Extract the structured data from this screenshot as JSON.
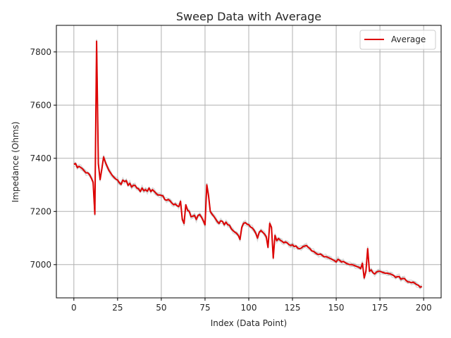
{
  "chart_data": {
    "type": "line",
    "title": "Sweep Data with Average",
    "xlabel": "Index (Data Point)",
    "ylabel": "Impedance (Ohms)",
    "xlim": [
      -10,
      210
    ],
    "ylim": [
      6875,
      7900
    ],
    "xticks": [
      0,
      25,
      50,
      75,
      100,
      125,
      150,
      175,
      200
    ],
    "yticks": [
      7000,
      7200,
      7400,
      7600,
      7800
    ],
    "grid": true,
    "legend": {
      "placement": "top-right",
      "entries": [
        "Average"
      ]
    },
    "colors": {
      "average": "#dd0000",
      "sweeps": "#999999",
      "grid": "#b0b0b0"
    },
    "series": [
      {
        "name": "Average",
        "x": [
          0,
          1,
          2,
          3,
          4,
          5,
          6,
          7,
          8,
          9,
          10,
          11,
          12,
          13,
          14,
          15,
          16,
          17,
          18,
          19,
          20,
          21,
          22,
          23,
          24,
          25,
          26,
          27,
          28,
          29,
          30,
          31,
          32,
          33,
          34,
          35,
          36,
          37,
          38,
          39,
          40,
          41,
          42,
          43,
          44,
          45,
          46,
          47,
          48,
          49,
          50,
          51,
          52,
          53,
          54,
          55,
          56,
          57,
          58,
          59,
          60,
          61,
          62,
          63,
          64,
          65,
          66,
          67,
          68,
          69,
          70,
          71,
          72,
          73,
          74,
          75,
          76,
          77,
          78,
          79,
          80,
          81,
          82,
          83,
          84,
          85,
          86,
          87,
          88,
          89,
          90,
          91,
          92,
          93,
          94,
          95,
          96,
          97,
          98,
          99,
          100,
          101,
          102,
          103,
          104,
          105,
          106,
          107,
          108,
          109,
          110,
          111,
          112,
          113,
          114,
          115,
          116,
          117,
          118,
          119,
          120,
          121,
          122,
          123,
          124,
          125,
          126,
          127,
          128,
          129,
          130,
          131,
          132,
          133,
          134,
          135,
          136,
          137,
          138,
          139,
          140,
          141,
          142,
          143,
          144,
          145,
          146,
          147,
          148,
          149,
          150,
          151,
          152,
          153,
          154,
          155,
          156,
          157,
          158,
          159,
          160,
          161,
          162,
          163,
          164,
          165,
          166,
          167,
          168,
          169,
          170,
          171,
          172,
          173,
          174,
          175,
          176,
          177,
          178,
          179,
          180,
          181,
          182,
          183,
          184,
          185,
          186,
          187,
          188,
          189,
          190,
          191,
          192,
          193,
          194,
          195,
          196,
          197,
          198,
          199
        ],
        "values": [
          7378,
          7380,
          7365,
          7370,
          7365,
          7360,
          7352,
          7345,
          7345,
          7338,
          7325,
          7310,
          7190,
          7840,
          7380,
          7320,
          7360,
          7405,
          7385,
          7370,
          7355,
          7345,
          7335,
          7328,
          7322,
          7318,
          7308,
          7302,
          7318,
          7312,
          7316,
          7298,
          7306,
          7292,
          7298,
          7298,
          7288,
          7285,
          7275,
          7288,
          7278,
          7282,
          7276,
          7288,
          7275,
          7282,
          7275,
          7268,
          7262,
          7262,
          7260,
          7258,
          7245,
          7242,
          7245,
          7240,
          7232,
          7225,
          7228,
          7222,
          7218,
          7238,
          7170,
          7155,
          7225,
          7205,
          7200,
          7180,
          7182,
          7185,
          7170,
          7185,
          7188,
          7178,
          7165,
          7150,
          7300,
          7260,
          7200,
          7190,
          7182,
          7172,
          7162,
          7155,
          7165,
          7162,
          7150,
          7160,
          7150,
          7148,
          7135,
          7128,
          7122,
          7118,
          7110,
          7095,
          7140,
          7155,
          7158,
          7152,
          7150,
          7142,
          7138,
          7130,
          7118,
          7100,
          7122,
          7128,
          7122,
          7115,
          7105,
          7065,
          7155,
          7140,
          7025,
          7110,
          7090,
          7098,
          7092,
          7088,
          7082,
          7085,
          7082,
          7075,
          7072,
          7075,
          7068,
          7070,
          7062,
          7060,
          7062,
          7068,
          7070,
          7072,
          7065,
          7060,
          7052,
          7050,
          7045,
          7040,
          7038,
          7040,
          7035,
          7030,
          7030,
          7028,
          7025,
          7022,
          7018,
          7015,
          7010,
          7020,
          7016,
          7010,
          7012,
          7008,
          7004,
          7002,
          7000,
          7000,
          6998,
          6995,
          6992,
          6990,
          6985,
          7005,
          6950,
          6975,
          7060,
          6975,
          6980,
          6970,
          6965,
          6972,
          6975,
          6975,
          6972,
          6970,
          6968,
          6968,
          6966,
          6965,
          6962,
          6958,
          6952,
          6955,
          6955,
          6945,
          6948,
          6948,
          6940,
          6935,
          6935,
          6932,
          6934,
          6930,
          6925,
          6922,
          6915,
          6918
        ]
      }
    ]
  }
}
